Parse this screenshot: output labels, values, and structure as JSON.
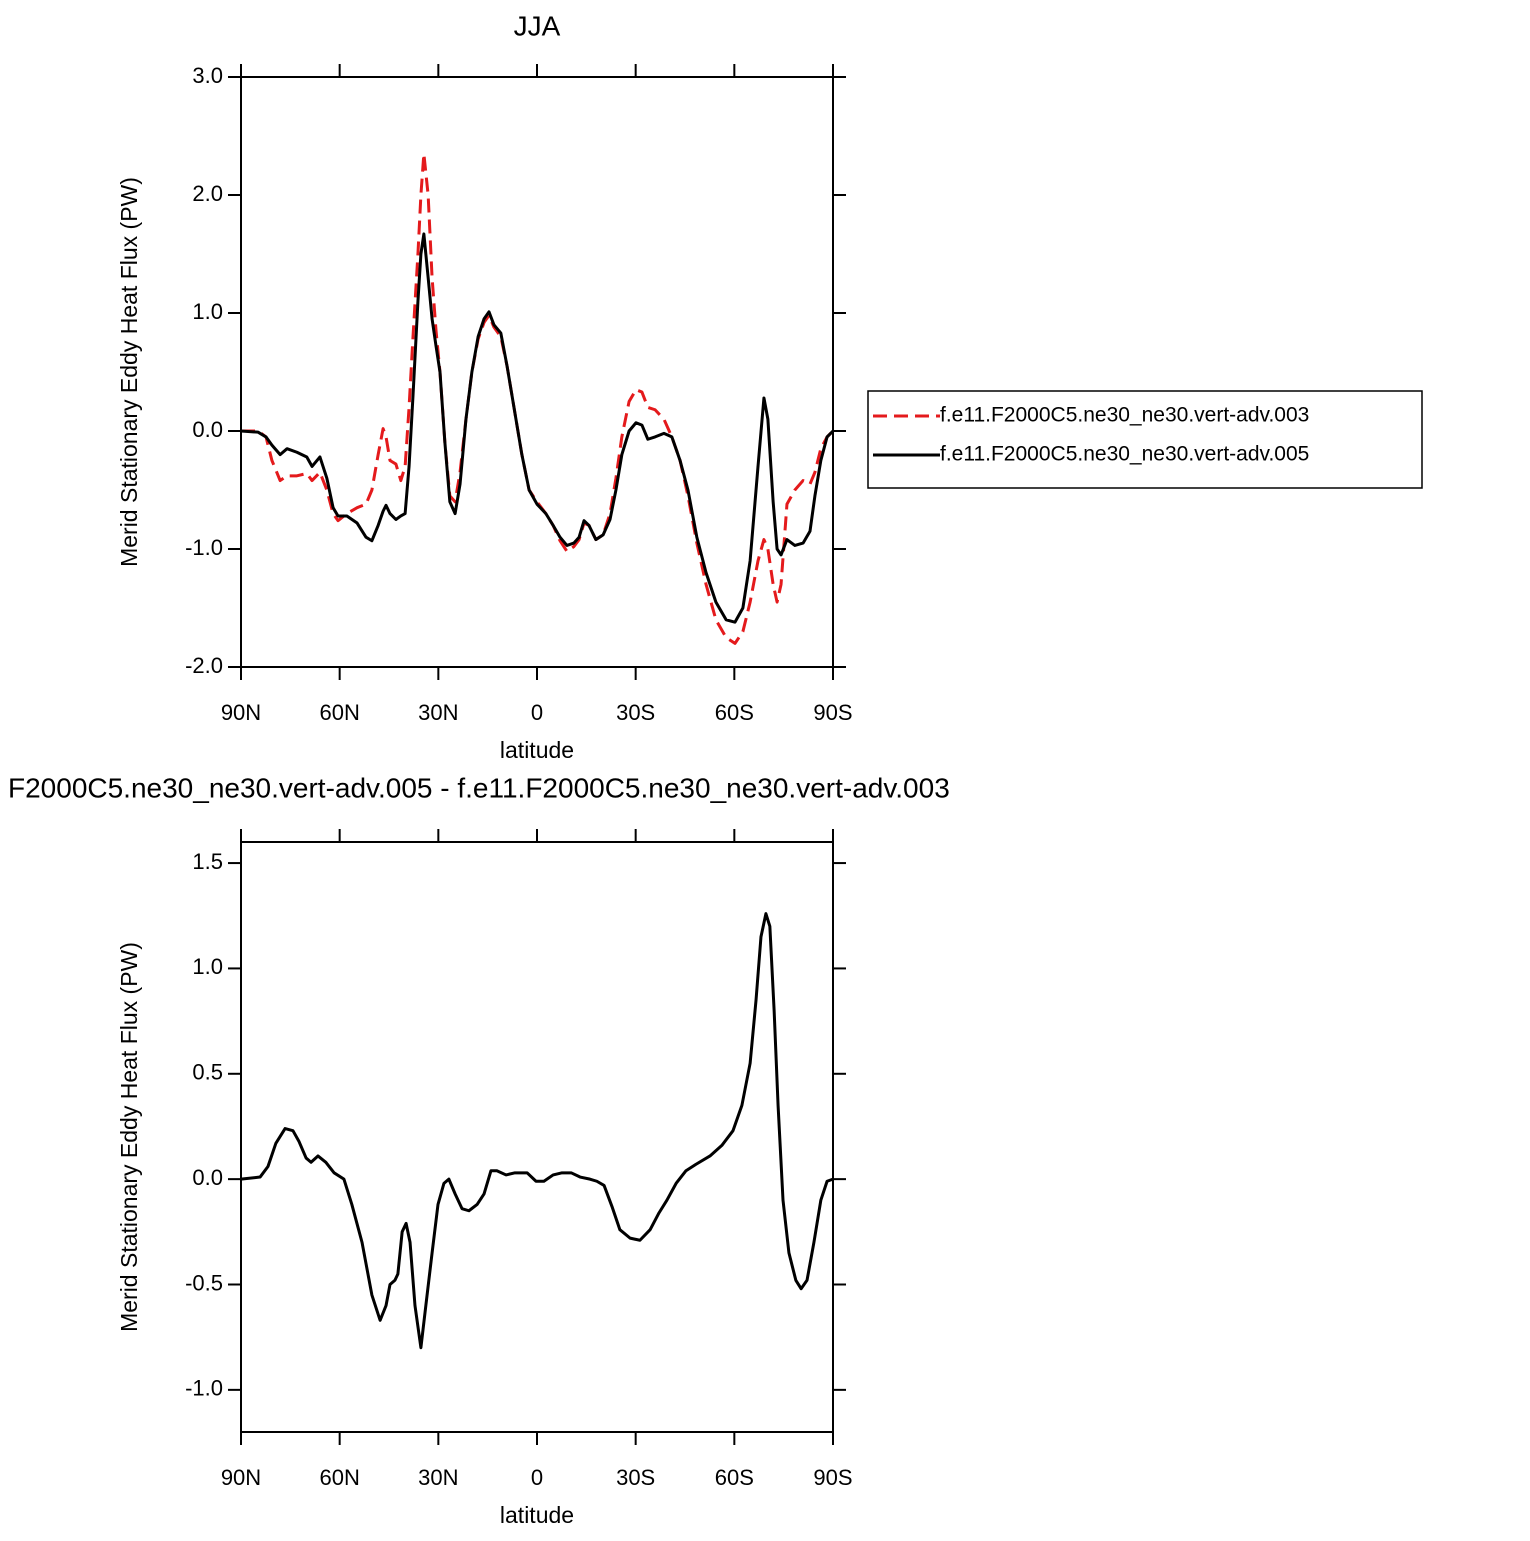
{
  "chart_data": [
    {
      "type": "line",
      "title": "JJA",
      "xlabel": "latitude",
      "ylabel": "Merid Stationary Eddy Heat Flux (PW)",
      "x": [
        90,
        84.8,
        82.4,
        80.6,
        78.1,
        76,
        73,
        70,
        68.4,
        66,
        63.9,
        62,
        60.5,
        57.8,
        54.7,
        52,
        50.2,
        48.3,
        46.8,
        45.9,
        44.7,
        42.9,
        41.4,
        40.1,
        38.9,
        37.7,
        36.2,
        35.3,
        34.4,
        33.1,
        31.9,
        30.7,
        29.5,
        28,
        26.5,
        24.9,
        23.4,
        21.6,
        19.8,
        17.9,
        16.1,
        14.6,
        13.1,
        11,
        9.1,
        7,
        4.6,
        2.4,
        0,
        -2.7,
        -4.9,
        -7,
        -9.1,
        -11.2,
        -12.8,
        -14.3,
        -15.8,
        -17.9,
        -20.1,
        -22.2,
        -24,
        -25.8,
        -28,
        -30.1,
        -31.9,
        -33.7,
        -35.9,
        -38.6,
        -41,
        -43.5,
        -45.9,
        -48.6,
        -51.4,
        -54.4,
        -57.5,
        -60.2,
        -62.6,
        -64.8,
        -67.2,
        -69,
        -70.2,
        -71.8,
        -73,
        -74.2,
        -76,
        -78.4,
        -80.9,
        -83,
        -84.5,
        -86.3,
        -88.2,
        -90
      ],
      "series": [
        {
          "name": "f.e11.F2000C5.ne30_ne30.vert-adv.003",
          "color": "#e41a1c",
          "dash": "dashed",
          "values": [
            0,
            0,
            -0.05,
            -0.25,
            -0.42,
            -0.38,
            -0.38,
            -0.36,
            -0.42,
            -0.35,
            -0.5,
            -0.7,
            -0.76,
            -0.7,
            -0.65,
            -0.62,
            -0.5,
            -0.2,
            0.02,
            -0.05,
            -0.25,
            -0.28,
            -0.42,
            -0.3,
            0.2,
            0.8,
            1.5,
            2.0,
            2.35,
            2.0,
            1.3,
            0.85,
            0.5,
            -0.1,
            -0.55,
            -0.6,
            -0.35,
            0.1,
            0.5,
            0.78,
            0.92,
            0.98,
            0.88,
            0.8,
            0.55,
            0.2,
            -0.2,
            -0.5,
            -0.6,
            -0.7,
            -0.8,
            -0.93,
            -1.02,
            -0.98,
            -0.92,
            -0.78,
            -0.8,
            -0.92,
            -0.88,
            -0.7,
            -0.4,
            -0.05,
            0.25,
            0.35,
            0.33,
            0.2,
            0.18,
            0.1,
            -0.05,
            -0.25,
            -0.55,
            -0.95,
            -1.3,
            -1.6,
            -1.75,
            -1.8,
            -1.7,
            -1.45,
            -1.1,
            -0.92,
            -1.0,
            -1.3,
            -1.45,
            -1.3,
            -0.62,
            -0.5,
            -0.42,
            -0.45,
            -0.35,
            -0.15,
            -0.05,
            0
          ]
        },
        {
          "name": "f.e11.F2000C5.ne30_ne30.vert-adv.005",
          "color": "#000000",
          "dash": "solid",
          "values": [
            0,
            -0.01,
            -0.05,
            -0.12,
            -0.2,
            -0.15,
            -0.18,
            -0.22,
            -0.3,
            -0.22,
            -0.4,
            -0.65,
            -0.72,
            -0.72,
            -0.78,
            -0.9,
            -0.93,
            -0.8,
            -0.68,
            -0.63,
            -0.7,
            -0.75,
            -0.72,
            -0.7,
            -0.3,
            0.3,
            1.1,
            1.5,
            1.67,
            1.3,
            0.95,
            0.72,
            0.5,
            -0.1,
            -0.6,
            -0.7,
            -0.45,
            0.1,
            0.5,
            0.8,
            0.95,
            1.01,
            0.9,
            0.83,
            0.55,
            0.2,
            -0.2,
            -0.5,
            -0.62,
            -0.7,
            -0.8,
            -0.9,
            -0.97,
            -0.95,
            -0.9,
            -0.76,
            -0.8,
            -0.92,
            -0.88,
            -0.75,
            -0.5,
            -0.2,
            0.0,
            0.07,
            0.05,
            -0.07,
            -0.05,
            -0.02,
            -0.05,
            -0.25,
            -0.5,
            -0.9,
            -1.2,
            -1.45,
            -1.6,
            -1.62,
            -1.5,
            -1.1,
            -0.3,
            0.28,
            0.1,
            -0.6,
            -1.0,
            -1.05,
            -0.92,
            -0.97,
            -0.95,
            -0.85,
            -0.55,
            -0.25,
            -0.05,
            0
          ]
        }
      ],
      "xlim": [
        90,
        -90
      ],
      "xticks": [
        {
          "value": 90,
          "label": "90N"
        },
        {
          "value": 60,
          "label": "60N"
        },
        {
          "value": 30,
          "label": "30N"
        },
        0,
        {
          "value": -30,
          "label": "30S"
        },
        {
          "value": -60,
          "label": "60S"
        },
        {
          "value": -90,
          "label": "90S"
        }
      ],
      "ylim": [
        -2,
        3
      ],
      "yticks": [
        {
          "value": 3,
          "label": "3.0"
        },
        {
          "value": 2,
          "label": "2.0"
        },
        {
          "value": 1,
          "label": "1.0"
        },
        {
          "value": 0,
          "label": "0.0"
        },
        {
          "value": -1,
          "label": "-1.0"
        },
        {
          "value": -2,
          "label": "-2.0"
        }
      ],
      "legend": "right"
    },
    {
      "type": "line",
      "title": "F2000C5.ne30_ne30.vert-adv.005 - f.e11.F2000C5.ne30_ne30.vert-adv.003",
      "xlabel": "latitude",
      "ylabel": "Merid Stationary Eddy Heat Flux (PW)",
      "x": [
        90,
        84.2,
        81.8,
        79.4,
        76.6,
        74.2,
        72.4,
        70.2,
        68.7,
        66.6,
        64.2,
        61.7,
        58.7,
        56.3,
        53.2,
        50.2,
        47.7,
        45.9,
        44.7,
        43.2,
        42.3,
        41,
        39.8,
        38.6,
        37.1,
        35.3,
        33.8,
        31.9,
        30.1,
        28.3,
        26.8,
        24.9,
        22.8,
        20.7,
        18.2,
        16.1,
        14,
        12.2,
        9.4,
        6.7,
        3,
        0.3,
        -2.1,
        -4.9,
        -7.6,
        -10.4,
        -13.1,
        -16.1,
        -18.2,
        -20.4,
        -22.8,
        -25.2,
        -28.3,
        -31.3,
        -34.4,
        -37.1,
        -39.5,
        -42.3,
        -45.3,
        -48.3,
        -52.6,
        -56.2,
        -59.6,
        -62.3,
        -64.8,
        -66.6,
        -68.1,
        -69.6,
        -70.8,
        -72.1,
        -73.3,
        -74.8,
        -76.6,
        -78.7,
        -80.3,
        -82.1,
        -84.2,
        -86.3,
        -88.2,
        -90
      ],
      "series": [
        {
          "color": "#000000",
          "dash": "solid",
          "values": [
            0,
            0.01,
            0.06,
            0.17,
            0.24,
            0.23,
            0.18,
            0.1,
            0.08,
            0.11,
            0.08,
            0.03,
            0.0,
            -0.12,
            -0.3,
            -0.55,
            -0.67,
            -0.6,
            -0.5,
            -0.48,
            -0.45,
            -0.25,
            -0.21,
            -0.3,
            -0.6,
            -0.8,
            -0.6,
            -0.35,
            -0.12,
            -0.02,
            0.0,
            -0.07,
            -0.14,
            -0.15,
            -0.12,
            -0.07,
            0.04,
            0.04,
            0.02,
            0.03,
            0.03,
            -0.01,
            -0.01,
            0.02,
            0.03,
            0.03,
            0.01,
            0.0,
            -0.01,
            -0.03,
            -0.13,
            -0.24,
            -0.28,
            -0.29,
            -0.24,
            -0.16,
            -0.1,
            -0.02,
            0.04,
            0.07,
            0.11,
            0.16,
            0.23,
            0.35,
            0.55,
            0.85,
            1.15,
            1.26,
            1.2,
            0.8,
            0.35,
            -0.1,
            -0.35,
            -0.48,
            -0.52,
            -0.48,
            -0.3,
            -0.1,
            -0.01,
            0
          ]
        }
      ],
      "xlim": [
        90,
        -90
      ],
      "xticks": [
        {
          "value": 90,
          "label": "90N"
        },
        {
          "value": 60,
          "label": "60N"
        },
        {
          "value": 30,
          "label": "30N"
        },
        0,
        {
          "value": -30,
          "label": "30S"
        },
        {
          "value": -60,
          "label": "60S"
        },
        {
          "value": -90,
          "label": "90S"
        }
      ],
      "ylim": [
        -1.2,
        1.6
      ],
      "yticks": [
        1.5,
        {
          "value": 1,
          "label": "1.0"
        },
        0.5,
        {
          "value": 0,
          "label": "0.0"
        },
        -0.5,
        {
          "value": -1,
          "label": "-1.0"
        }
      ]
    }
  ]
}
